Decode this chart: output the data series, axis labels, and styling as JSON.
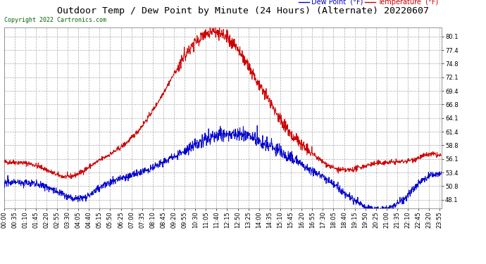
{
  "title": "Outdoor Temp / Dew Point by Minute (24 Hours) (Alternate) 20220607",
  "copyright": "Copyright 2022 Cartronics.com",
  "legend_dew": "Dew Point  (°F)",
  "legend_temp": "Temperature  (°F)",
  "temp_color": "#cc0000",
  "dew_color": "#0000cc",
  "ylim_min": 46.4,
  "ylim_max": 81.8,
  "yticks": [
    48.1,
    50.8,
    53.4,
    56.1,
    58.8,
    61.4,
    64.1,
    66.8,
    69.4,
    72.1,
    74.8,
    77.4,
    80.1
  ],
  "bg_color": "#ffffff",
  "grid_color": "#aaaaaa",
  "title_fontsize": 9.5,
  "tick_fontsize": 6.0,
  "n_minutes": 1441,
  "x_tick_interval": 35
}
